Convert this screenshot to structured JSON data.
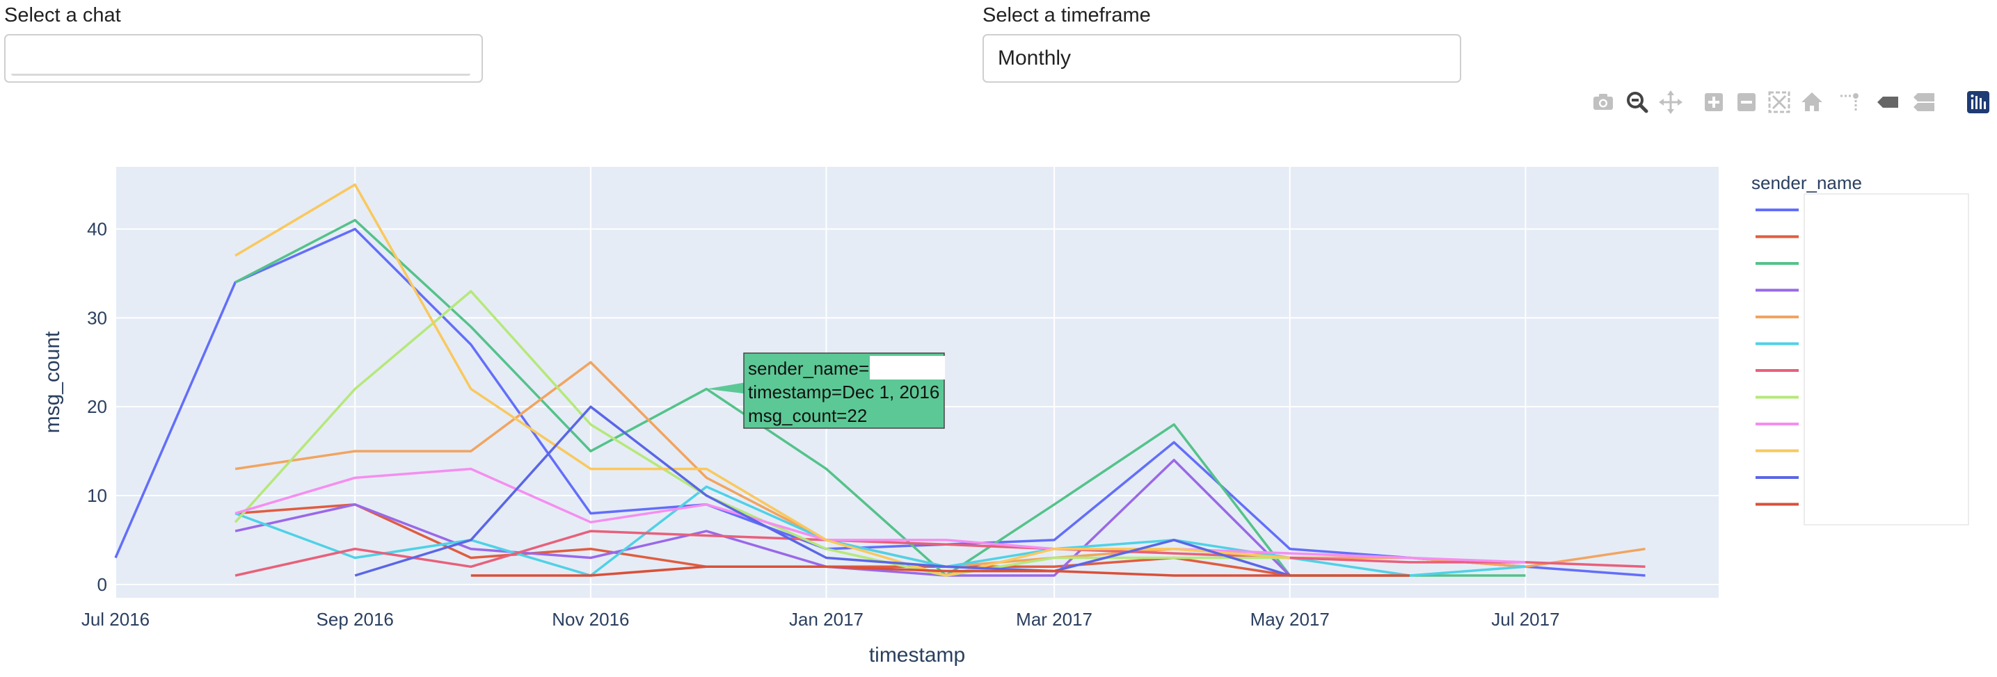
{
  "controls": {
    "chat_label": "Select a chat",
    "chat_value": "",
    "timeframe_label": "Select a timeframe",
    "timeframe_value": "Monthly"
  },
  "modebar": {
    "icons": [
      "camera-icon",
      "zoom-icon",
      "pan-icon",
      "zoom-in-icon",
      "zoom-out-icon",
      "autoscale-icon",
      "reset-axes-icon",
      "spike-lines-icon",
      "hover-closest-icon",
      "hover-compare-icon",
      "plotly-logo-icon"
    ]
  },
  "tooltip": {
    "line1": "sender_name=",
    "line2": "timestamp=Dec 1, 2016",
    "line3": "msg_count=22",
    "color": "#5cc896"
  },
  "chart_data": {
    "type": "line",
    "xlabel": "timestamp",
    "ylabel": "msg_count",
    "x_ticks": [
      "Jul 2016",
      "Sep 2016",
      "Nov 2016",
      "Jan 2017",
      "Mar 2017",
      "May 2017",
      "Jul 2017"
    ],
    "y_ticks": [
      0,
      10,
      20,
      30,
      40
    ],
    "ylim": [
      -1.5,
      47
    ],
    "xlim": [
      "2016-07-01",
      "2017-08-20"
    ],
    "grid": true,
    "legend_title": "sender_name",
    "legend_position": "right",
    "background": "#e5ecf6",
    "series": [
      {
        "color": "#636efa",
        "points": [
          [
            "2016-07-01",
            3
          ],
          [
            "2016-08-01",
            34
          ],
          [
            "2016-09-01",
            40
          ],
          [
            "2016-10-01",
            27
          ],
          [
            "2016-11-01",
            8
          ],
          [
            "2016-12-01",
            9
          ],
          [
            "2017-01-01",
            4
          ],
          [
            "2017-02-01",
            4.5
          ],
          [
            "2017-03-01",
            5
          ],
          [
            "2017-04-01",
            16
          ],
          [
            "2017-05-01",
            4
          ],
          [
            "2017-06-01",
            3
          ],
          [
            "2017-07-01",
            2
          ],
          [
            "2017-08-01",
            1
          ]
        ]
      },
      {
        "color": "#e05c40",
        "points": [
          [
            "2016-08-01",
            8
          ],
          [
            "2016-09-01",
            9
          ],
          [
            "2016-10-01",
            3
          ],
          [
            "2016-11-01",
            4
          ],
          [
            "2016-12-01",
            2
          ],
          [
            "2017-01-01",
            2
          ],
          [
            "2017-02-01",
            2
          ],
          [
            "2017-03-01",
            2
          ],
          [
            "2017-04-01",
            3
          ],
          [
            "2017-05-01",
            1
          ],
          [
            "2017-06-01",
            1
          ]
        ]
      },
      {
        "color": "#54c28a",
        "points": [
          [
            "2016-08-01",
            34
          ],
          [
            "2016-09-01",
            41
          ],
          [
            "2016-10-01",
            29
          ],
          [
            "2016-11-01",
            15
          ],
          [
            "2016-12-01",
            22
          ],
          [
            "2017-01-01",
            13
          ],
          [
            "2017-02-01",
            1
          ],
          [
            "2017-03-01",
            9
          ],
          [
            "2017-04-01",
            18
          ],
          [
            "2017-05-01",
            1
          ],
          [
            "2017-06-01",
            1
          ],
          [
            "2017-07-01",
            1
          ]
        ]
      },
      {
        "color": "#9a68e8",
        "points": [
          [
            "2016-08-01",
            6
          ],
          [
            "2016-09-01",
            9
          ],
          [
            "2016-10-01",
            4
          ],
          [
            "2016-11-01",
            3
          ],
          [
            "2016-12-01",
            6
          ],
          [
            "2017-01-01",
            2
          ],
          [
            "2017-02-01",
            1
          ],
          [
            "2017-03-01",
            1
          ],
          [
            "2017-04-01",
            14
          ],
          [
            "2017-05-01",
            1
          ]
        ]
      },
      {
        "color": "#f2a45f",
        "points": [
          [
            "2016-08-01",
            13
          ],
          [
            "2016-09-01",
            15
          ],
          [
            "2016-10-01",
            15
          ],
          [
            "2016-11-01",
            25
          ],
          [
            "2016-12-01",
            12
          ],
          [
            "2017-01-01",
            5
          ],
          [
            "2017-02-01",
            2
          ],
          [
            "2017-03-01",
            3
          ],
          [
            "2017-04-01",
            4
          ],
          [
            "2017-05-01",
            3
          ],
          [
            "2017-06-01",
            3
          ],
          [
            "2017-07-01",
            2
          ],
          [
            "2017-08-01",
            4
          ]
        ]
      },
      {
        "color": "#4fd1e6",
        "points": [
          [
            "2016-08-01",
            8
          ],
          [
            "2016-09-01",
            3
          ],
          [
            "2016-10-01",
            5
          ],
          [
            "2016-11-01",
            1
          ],
          [
            "2016-12-01",
            11
          ],
          [
            "2017-01-01",
            5
          ],
          [
            "2017-02-01",
            2
          ],
          [
            "2017-03-01",
            4
          ],
          [
            "2017-04-01",
            5
          ],
          [
            "2017-05-01",
            3
          ],
          [
            "2017-06-01",
            1
          ],
          [
            "2017-07-01",
            2
          ]
        ]
      },
      {
        "color": "#e8607a",
        "points": [
          [
            "2016-08-01",
            1
          ],
          [
            "2016-09-01",
            4
          ],
          [
            "2016-10-01",
            2
          ],
          [
            "2016-11-01",
            6
          ],
          [
            "2016-12-01",
            5.5
          ],
          [
            "2017-01-01",
            5
          ],
          [
            "2017-02-01",
            4.5
          ],
          [
            "2017-03-01",
            4
          ],
          [
            "2017-04-01",
            3.5
          ],
          [
            "2017-05-01",
            3
          ],
          [
            "2017-06-01",
            2.5
          ],
          [
            "2017-07-01",
            2.5
          ],
          [
            "2017-08-01",
            2
          ]
        ]
      },
      {
        "color": "#b6e87a",
        "points": [
          [
            "2016-08-01",
            7
          ],
          [
            "2016-09-01",
            22
          ],
          [
            "2016-10-01",
            33
          ],
          [
            "2016-11-01",
            18
          ],
          [
            "2016-12-01",
            10
          ],
          [
            "2017-01-01",
            4
          ],
          [
            "2017-02-01",
            1
          ],
          [
            "2017-03-01",
            3
          ],
          [
            "2017-04-01",
            3
          ],
          [
            "2017-05-01",
            3
          ]
        ]
      },
      {
        "color": "#f58ef0",
        "points": [
          [
            "2016-08-01",
            8
          ],
          [
            "2016-09-01",
            12
          ],
          [
            "2016-10-01",
            13
          ],
          [
            "2016-11-01",
            7
          ],
          [
            "2016-12-01",
            9
          ],
          [
            "2017-01-01",
            5
          ],
          [
            "2017-02-01",
            5
          ],
          [
            "2017-03-01",
            4
          ],
          [
            "2017-04-01",
            4
          ],
          [
            "2017-05-01",
            3.5
          ],
          [
            "2017-06-01",
            3
          ],
          [
            "2017-07-01",
            2.5
          ]
        ]
      },
      {
        "color": "#f9c85e",
        "points": [
          [
            "2016-08-01",
            37
          ],
          [
            "2016-09-01",
            45
          ],
          [
            "2016-10-01",
            22
          ],
          [
            "2016-11-01",
            13
          ],
          [
            "2016-12-01",
            13
          ],
          [
            "2017-01-01",
            5
          ],
          [
            "2017-02-01",
            1
          ],
          [
            "2017-03-01",
            4
          ],
          [
            "2017-04-01",
            4
          ],
          [
            "2017-05-01",
            3
          ]
        ]
      },
      {
        "color": "#5a66e6",
        "points": [
          [
            "2016-09-01",
            1
          ],
          [
            "2016-10-01",
            5
          ],
          [
            "2016-11-01",
            20
          ],
          [
            "2016-12-01",
            10
          ],
          [
            "2017-01-01",
            3
          ],
          [
            "2017-02-01",
            2
          ],
          [
            "2017-03-01",
            1.5
          ],
          [
            "2017-04-01",
            5
          ],
          [
            "2017-05-01",
            1
          ]
        ]
      },
      {
        "color": "#d9503a",
        "points": [
          [
            "2016-10-01",
            1
          ],
          [
            "2016-11-01",
            1
          ],
          [
            "2016-12-01",
            2
          ],
          [
            "2017-01-01",
            2
          ],
          [
            "2017-02-01",
            1.5
          ],
          [
            "2017-03-01",
            1.5
          ],
          [
            "2017-04-01",
            1
          ],
          [
            "2017-05-01",
            1
          ],
          [
            "2017-06-01",
            1
          ]
        ]
      }
    ]
  }
}
